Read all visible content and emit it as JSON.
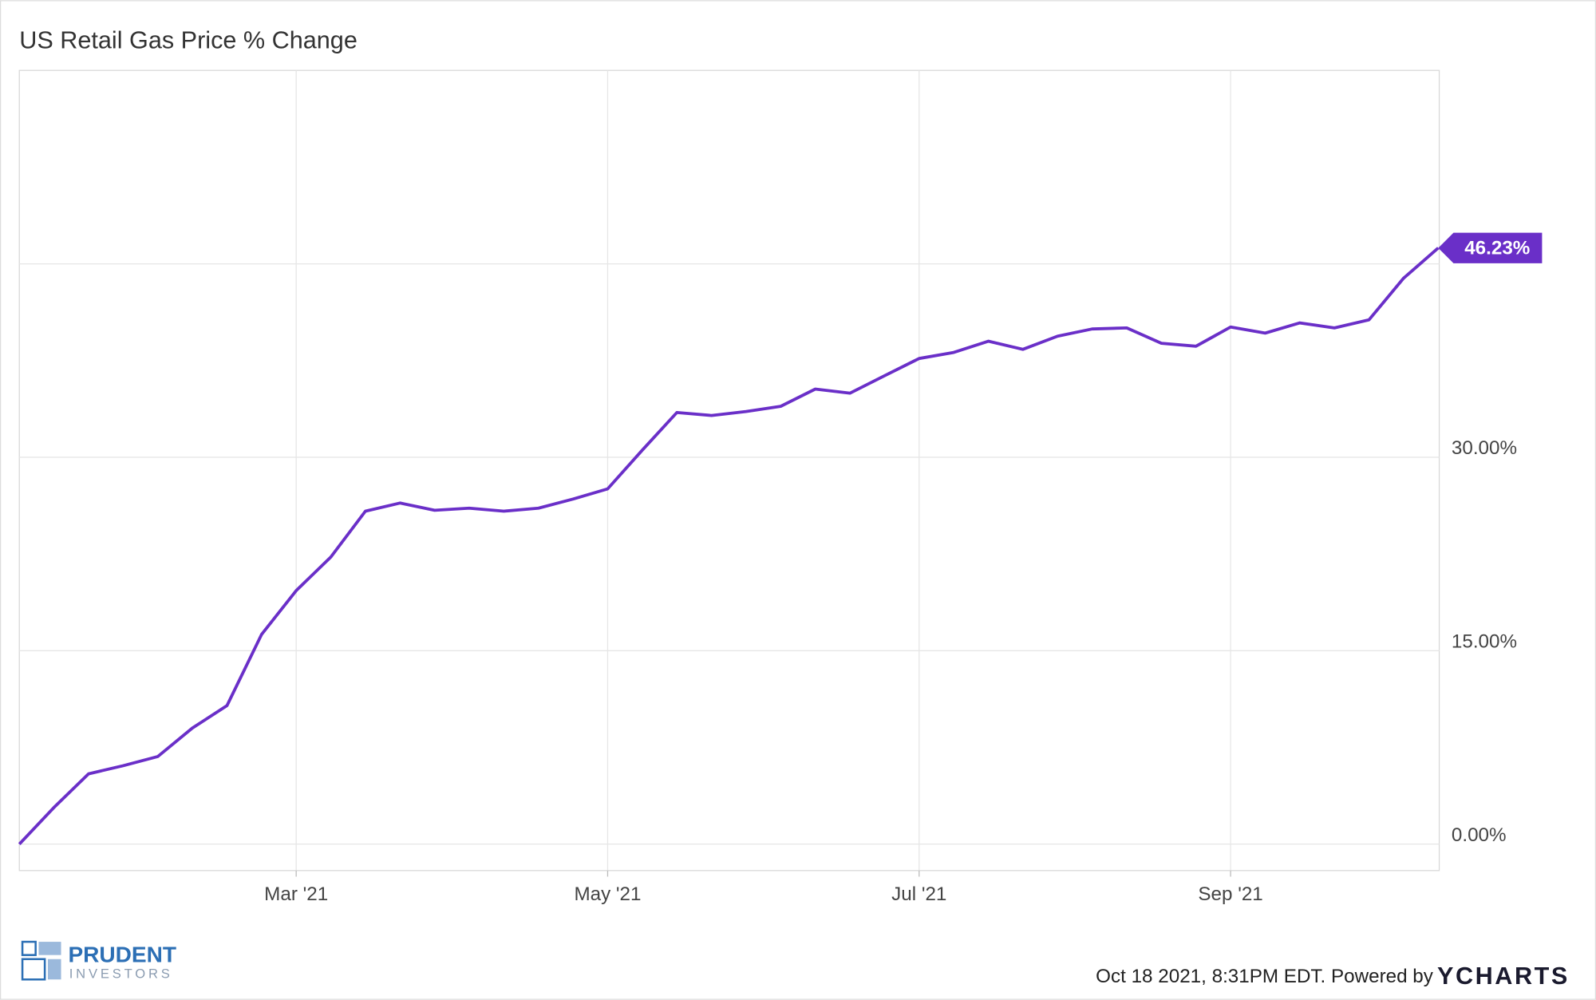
{
  "chart_data": {
    "type": "line",
    "title": "US Retail Gas Price % Change",
    "categories": [
      null,
      null,
      null,
      null,
      null,
      null,
      null,
      null,
      "Mar '21",
      null,
      null,
      null,
      null,
      null,
      null,
      null,
      null,
      "May '21",
      null,
      null,
      null,
      null,
      null,
      null,
      null,
      null,
      "Jul '21",
      null,
      null,
      null,
      null,
      null,
      null,
      null,
      null,
      "Sep '21",
      null,
      null,
      null,
      null,
      null,
      null
    ],
    "series": [
      {
        "color": "#6a2fc8",
        "values": [
          0,
          2.84,
          5.45,
          6.08,
          6.79,
          9.0,
          10.74,
          16.26,
          19.66,
          22.26,
          25.82,
          26.45,
          25.89,
          26.05,
          25.82,
          26.05,
          26.76,
          27.55,
          30.55,
          33.47,
          33.24,
          33.55,
          33.95,
          35.29,
          34.97,
          36.32,
          37.66,
          38.13,
          39.0,
          38.37,
          39.39,
          39.95,
          40.03,
          38.84,
          38.61,
          40.1,
          39.63,
          40.42,
          40.03,
          40.66,
          43.89,
          46.23
        ],
        "value_labels": [
          null,
          null,
          null,
          null,
          null,
          null,
          null,
          null,
          null,
          null,
          null,
          null,
          null,
          null,
          null,
          null,
          null,
          null,
          null,
          null,
          null,
          null,
          null,
          null,
          null,
          null,
          null,
          null,
          null,
          null,
          null,
          null,
          null,
          null,
          null,
          null,
          null,
          null,
          null,
          null,
          null,
          "46.23%"
        ]
      }
    ],
    "ylim": [
      -2.05,
      60
    ],
    "yticks": [
      {
        "value": 0,
        "label": "0.00%"
      },
      {
        "value": 15,
        "label": "15.00%"
      },
      {
        "value": 30,
        "label": "30.00%"
      },
      {
        "value": 45,
        "label": null
      }
    ],
    "grid": true
  },
  "branding": {
    "logo_top": "PRUDENT",
    "logo_bottom": "INVESTORS",
    "timestamp": "Oct 18 2021, 8:31PM EDT. Powered by",
    "source": "YCHARTS"
  }
}
